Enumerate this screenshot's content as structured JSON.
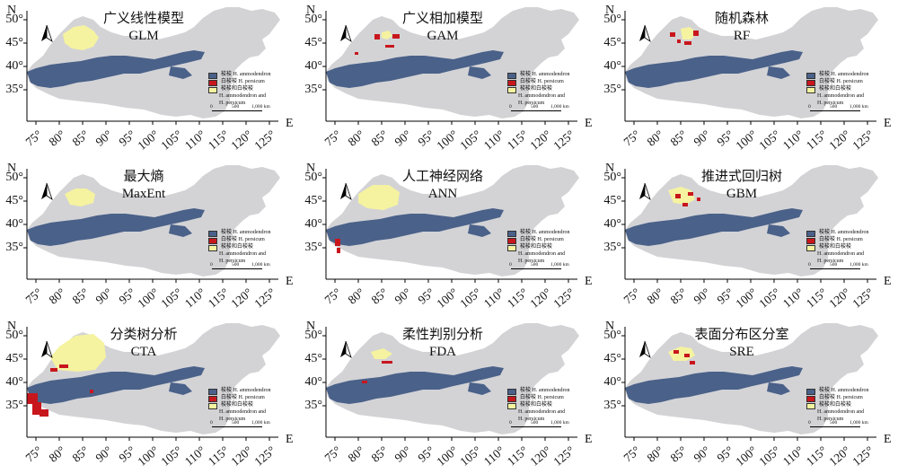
{
  "colors": {
    "background": "#ffffff",
    "china_land": "#d3d3d6",
    "h_ammodendron": "#4a6189",
    "h_persicum": "#c8161d",
    "both": "#f5f3a0"
  },
  "axes": {
    "north_label": "N",
    "east_label": "E",
    "y_ticks": [
      "50°",
      "45°",
      "40°",
      "35°"
    ],
    "x_ticks": [
      "75°",
      "80°",
      "85°",
      "90°",
      "95°",
      "100°",
      "105°",
      "110°",
      "115°",
      "120°",
      "125°"
    ]
  },
  "legend": {
    "items": [
      {
        "label": "梭梭 H. ammodendron",
        "color": "#4a6189"
      },
      {
        "label": "白梭梭 H. persicum",
        "color": "#c8161d"
      },
      {
        "label": "梭梭和白梭梭",
        "color": "#f5f3a0"
      },
      {
        "label": "H. ammodendron and",
        "color": ""
      },
      {
        "label": "H. persicum",
        "color": ""
      }
    ],
    "scale": {
      "zero": "0",
      "mid": "500",
      "end": "1,000 km"
    }
  },
  "panels": [
    {
      "title": "广义线性模型",
      "abbr": "GLM"
    },
    {
      "title": "广义相加模型",
      "abbr": "GAM"
    },
    {
      "title": "随机森林",
      "abbr": "RF"
    },
    {
      "title": "最大熵",
      "abbr": "MaxEnt"
    },
    {
      "title": "人工神经网络",
      "abbr": "ANN"
    },
    {
      "title": "推进式回归树",
      "abbr": "GBM"
    },
    {
      "title": "分类树分析",
      "abbr": "CTA"
    },
    {
      "title": "柔性判别分析",
      "abbr": "FDA"
    },
    {
      "title": "表面分布区分室",
      "abbr": "SRE"
    }
  ]
}
